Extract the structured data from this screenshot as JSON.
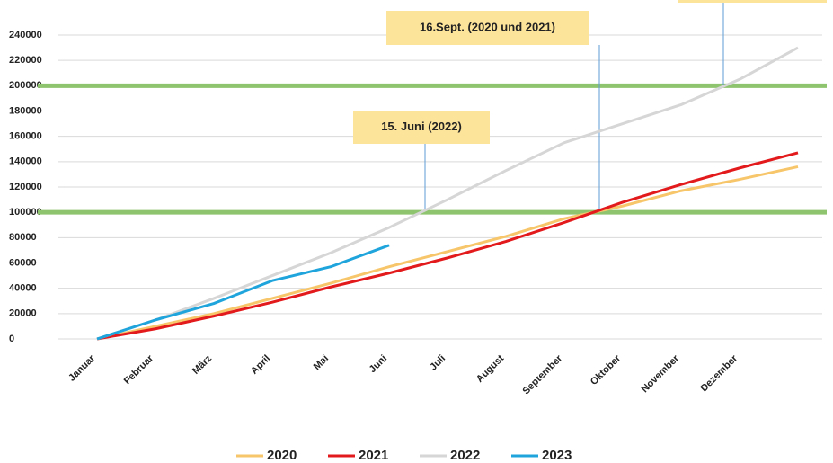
{
  "chart_data": {
    "type": "line",
    "categories": [
      "Januar",
      "Februar",
      "März",
      "April",
      "Mai",
      "Juni",
      "Juli",
      "August",
      "September",
      "Oktober",
      "November",
      "Dezember",
      null
    ],
    "series": [
      {
        "name": "2020",
        "color": "#f7c66b",
        "values": [
          0,
          10000,
          20000,
          32000,
          44000,
          57000,
          69000,
          81000,
          95000,
          105000,
          117000,
          126000,
          136000
        ]
      },
      {
        "name": "2021",
        "color": "#e31a1c",
        "values": [
          0,
          8000,
          18000,
          29000,
          41000,
          52000,
          64000,
          77000,
          92000,
          108000,
          122000,
          135000,
          147000
        ]
      },
      {
        "name": "2022",
        "color": "#d6d6d6",
        "values": [
          0,
          15000,
          32000,
          50000,
          68000,
          88000,
          110000,
          133000,
          155000,
          170000,
          185000,
          205000,
          230000
        ]
      },
      {
        "name": "2023",
        "color": "#1fa5dc",
        "values": [
          0,
          15000,
          28000,
          46000,
          57000,
          74000,
          null,
          null,
          null,
          null,
          null,
          null,
          null
        ]
      }
    ],
    "ylim": [
      0,
      240000
    ],
    "yticks": [
      0,
      20000,
      40000,
      60000,
      80000,
      100000,
      120000,
      140000,
      160000,
      180000,
      200000,
      220000,
      240000
    ],
    "grid": true,
    "reference_lines": [
      100000,
      200000
    ],
    "reference_color": "#8fc46f",
    "annotations": [
      {
        "text": "16.Sept. (2020 und 2021)"
      },
      {
        "text": "15. Juni (2022)"
      }
    ],
    "legend": "bottom"
  }
}
